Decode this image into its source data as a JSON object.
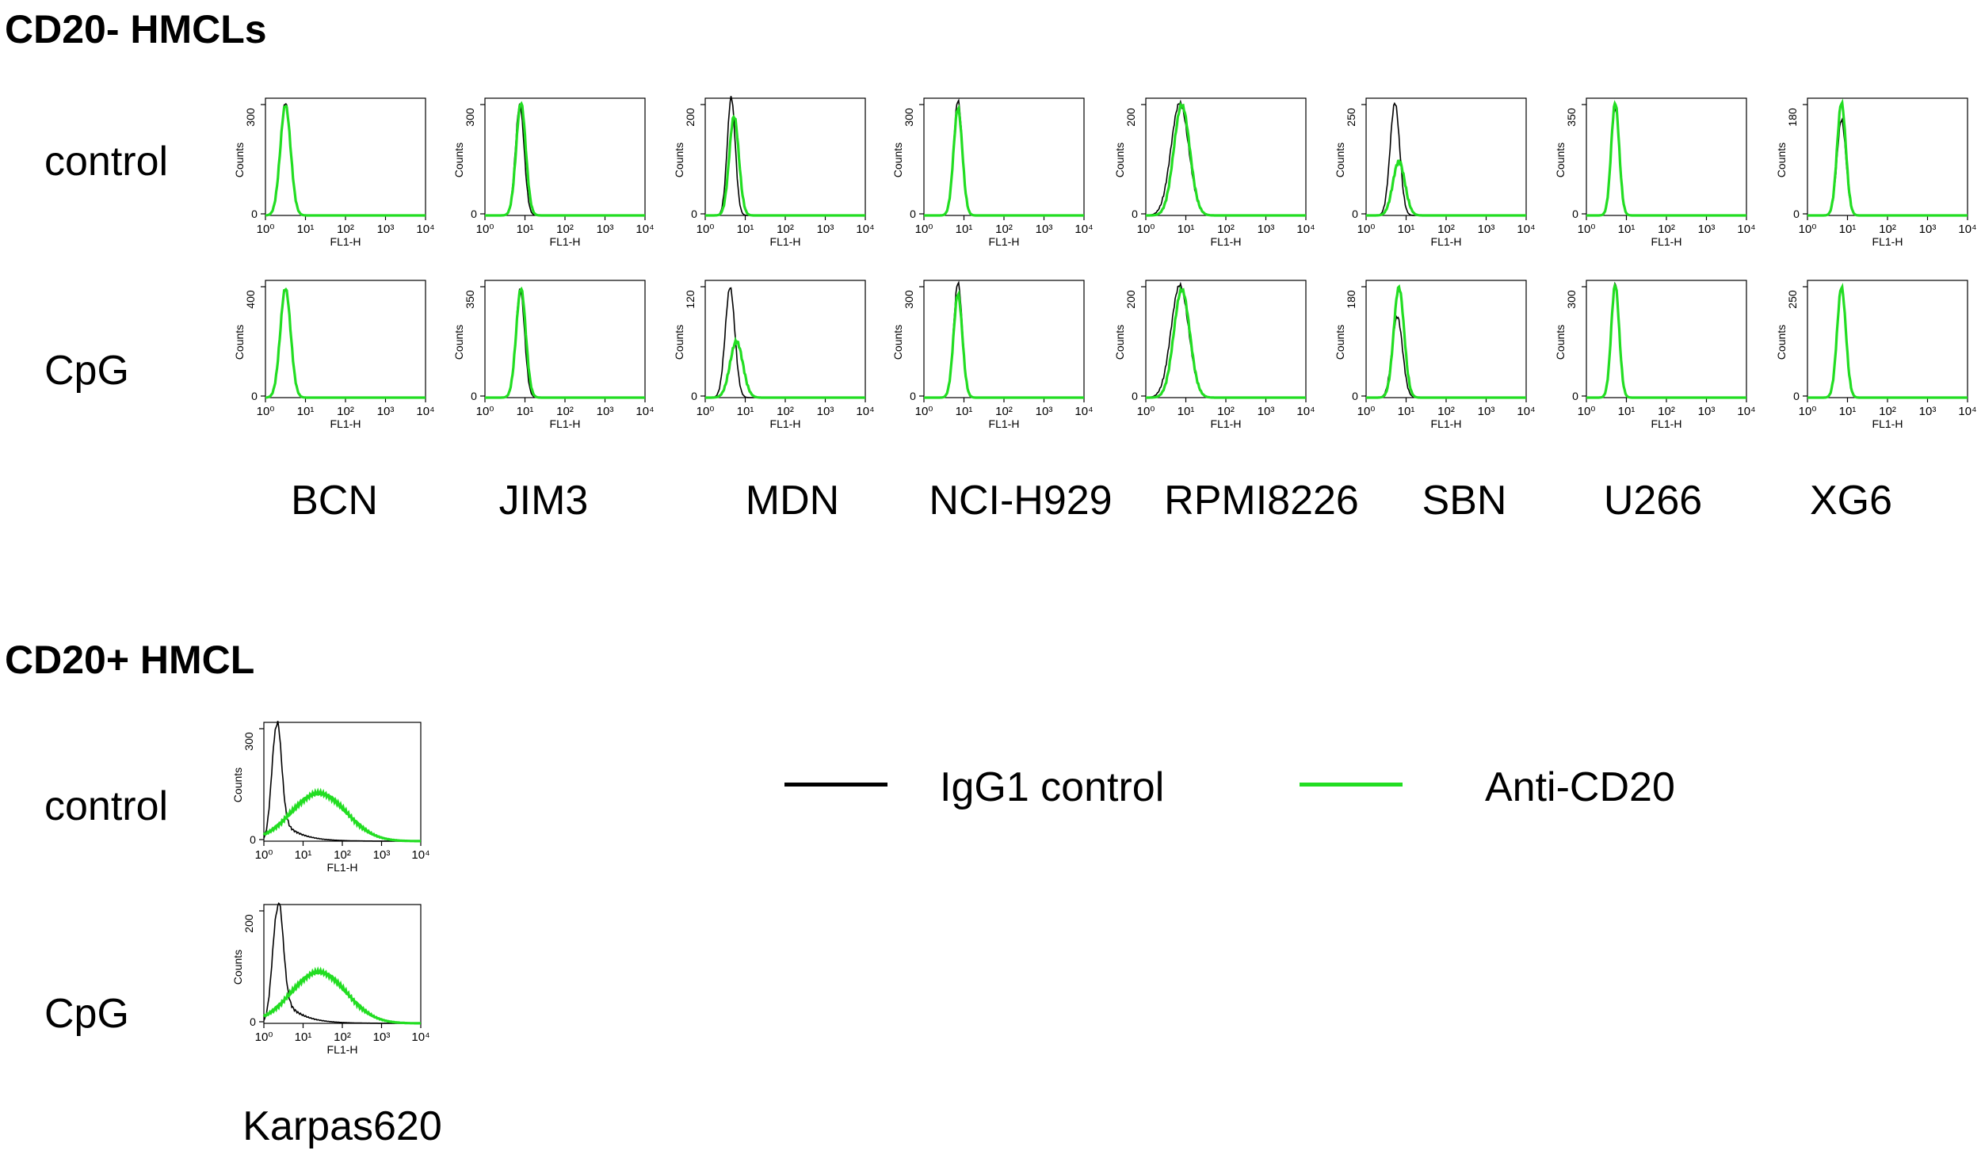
{
  "sections": {
    "negative_title": "CD20- HMCLs",
    "positive_title": "CD20+ HMCL"
  },
  "row_labels": {
    "control": "control",
    "cpg": "CpG"
  },
  "panel_axis": {
    "ylabel": "Counts",
    "xlabel": "FL1-H",
    "xticks_4": [
      "10⁰",
      "10¹",
      "10²",
      "10³",
      "10⁴"
    ],
    "xticks_3": [
      "10⁰",
      "10¹",
      "10²",
      "10³",
      "10⁴"
    ]
  },
  "legend": {
    "isotype_label": "IgG1 control",
    "anti_label": "Anti-CD20",
    "isotype_color": "#000000",
    "anti_color": "#22dd22"
  },
  "cell_lines_negative": [
    "BCN",
    "JIM3",
    "MDN",
    "NCI-H929",
    "RPMI8226",
    "SBN",
    "U266",
    "XG6"
  ],
  "cell_line_positive": "Karpas620",
  "chart_data": [
    {
      "type": "line",
      "title": "CD20- HMCLs",
      "xlabel": "FL1-H",
      "ylabel": "Counts",
      "x_scale": "log",
      "xlim": [
        1,
        10000
      ],
      "series": [
        {
          "name": "IgG1 control",
          "color": "#000000"
        },
        {
          "name": "Anti-CD20",
          "color": "#22dd22"
        }
      ],
      "panels": [
        {
          "cell_line": "BCN",
          "condition": "control",
          "ymax": 300,
          "ytick": "300",
          "iso": {
            "peak": 0.5,
            "sigma": 0.13,
            "height": 1.0
          },
          "anti": {
            "peak": 0.5,
            "sigma": 0.13,
            "height": 0.98
          }
        },
        {
          "cell_line": "BCN",
          "condition": "CpG",
          "ymax": 400,
          "ytick": "400",
          "iso": {
            "peak": 0.5,
            "sigma": 0.13,
            "height": 0.96
          },
          "anti": {
            "peak": 0.5,
            "sigma": 0.13,
            "height": 0.97
          }
        },
        {
          "cell_line": "JIM3",
          "condition": "control",
          "ymax": 300,
          "ytick": "300",
          "iso": {
            "peak": 0.87,
            "sigma": 0.11,
            "height": 0.98
          },
          "anti": {
            "peak": 0.9,
            "sigma": 0.12,
            "height": 1.0
          }
        },
        {
          "cell_line": "JIM3",
          "condition": "CpG",
          "ymax": 350,
          "ytick": "350",
          "iso": {
            "peak": 0.88,
            "sigma": 0.11,
            "height": 0.96
          },
          "anti": {
            "peak": 0.9,
            "sigma": 0.12,
            "height": 0.97
          }
        },
        {
          "cell_line": "MDN",
          "condition": "control",
          "ymax": 200,
          "ytick": "200",
          "iso": {
            "peak": 0.65,
            "sigma": 0.1,
            "height": 1.05
          },
          "anti": {
            "peak": 0.72,
            "sigma": 0.12,
            "height": 0.88
          }
        },
        {
          "cell_line": "MDN",
          "condition": "CpG",
          "ymax": 120,
          "ytick": "120",
          "iso": {
            "peak": 0.62,
            "sigma": 0.12,
            "height": 0.98
          },
          "anti": {
            "peak": 0.78,
            "sigma": 0.16,
            "height": 0.5
          }
        },
        {
          "cell_line": "NCI-H929",
          "condition": "control",
          "ymax": 300,
          "ytick": "300",
          "iso": {
            "peak": 0.85,
            "sigma": 0.11,
            "height": 1.02
          },
          "anti": {
            "peak": 0.85,
            "sigma": 0.11,
            "height": 0.95
          }
        },
        {
          "cell_line": "NCI-H929",
          "condition": "CpG",
          "ymax": 300,
          "ytick": "300",
          "iso": {
            "peak": 0.85,
            "sigma": 0.11,
            "height": 1.02
          },
          "anti": {
            "peak": 0.85,
            "sigma": 0.11,
            "height": 0.92
          }
        },
        {
          "cell_line": "RPMI8226",
          "condition": "control",
          "ymax": 200,
          "ytick": "200",
          "iso": {
            "peak": 0.85,
            "sigma": 0.22,
            "height": 1.0
          },
          "anti": {
            "peak": 0.9,
            "sigma": 0.2,
            "height": 0.98
          }
        },
        {
          "cell_line": "RPMI8226",
          "condition": "CpG",
          "ymax": 200,
          "ytick": "200",
          "iso": {
            "peak": 0.85,
            "sigma": 0.22,
            "height": 1.0
          },
          "anti": {
            "peak": 0.9,
            "sigma": 0.2,
            "height": 0.96
          }
        },
        {
          "cell_line": "SBN",
          "condition": "control",
          "ymax": 250,
          "ytick": "250",
          "iso": {
            "peak": 0.72,
            "sigma": 0.12,
            "height": 1.0
          },
          "anti": {
            "peak": 0.82,
            "sigma": 0.15,
            "height": 0.48
          }
        },
        {
          "cell_line": "SBN",
          "condition": "CpG",
          "ymax": 180,
          "ytick": "180",
          "iso": {
            "peak": 0.78,
            "sigma": 0.13,
            "height": 0.72
          },
          "anti": {
            "peak": 0.82,
            "sigma": 0.13,
            "height": 0.98
          }
        },
        {
          "cell_line": "U266",
          "condition": "control",
          "ymax": 350,
          "ytick": "350",
          "iso": {
            "peak": 0.72,
            "sigma": 0.1,
            "height": 0.95
          },
          "anti": {
            "peak": 0.72,
            "sigma": 0.1,
            "height": 1.0
          }
        },
        {
          "cell_line": "U266",
          "condition": "CpG",
          "ymax": 300,
          "ytick": "300",
          "iso": {
            "peak": 0.72,
            "sigma": 0.1,
            "height": 1.02
          },
          "anti": {
            "peak": 0.72,
            "sigma": 0.1,
            "height": 1.0
          }
        },
        {
          "cell_line": "XG6",
          "condition": "control",
          "ymax": 180,
          "ytick": "180",
          "iso": {
            "peak": 0.85,
            "sigma": 0.11,
            "height": 0.85
          },
          "anti": {
            "peak": 0.85,
            "sigma": 0.11,
            "height": 1.0
          }
        },
        {
          "cell_line": "XG6",
          "condition": "CpG",
          "ymax": 250,
          "ytick": "250",
          "iso": {
            "peak": 0.85,
            "sigma": 0.11,
            "height": 0.98
          },
          "anti": {
            "peak": 0.85,
            "sigma": 0.11,
            "height": 0.98
          }
        }
      ]
    },
    {
      "type": "line",
      "title": "CD20+ HMCL",
      "xlabel": "FL1-H",
      "ylabel": "Counts",
      "x_scale": "log",
      "xlim": [
        1,
        10000
      ],
      "series": [
        {
          "name": "IgG1 control",
          "color": "#000000"
        },
        {
          "name": "Anti-CD20",
          "color": "#22dd22"
        }
      ],
      "panels": [
        {
          "cell_line": "Karpas620",
          "condition": "control",
          "ymax": 300,
          "ytick": "300",
          "iso": {
            "peak": 0.32,
            "sigma": 0.12,
            "height": 1.0,
            "tail": 0.25
          },
          "anti": {
            "peak": 1.4,
            "sigma": 0.7,
            "height": 0.42,
            "tail": 0.0
          }
        },
        {
          "cell_line": "Karpas620",
          "condition": "CpG",
          "ymax": 200,
          "ytick": "200",
          "iso": {
            "peak": 0.35,
            "sigma": 0.13,
            "height": 1.0,
            "tail": 0.3
          },
          "anti": {
            "peak": 1.4,
            "sigma": 0.7,
            "height": 0.45,
            "tail": 0.0
          }
        }
      ]
    }
  ]
}
